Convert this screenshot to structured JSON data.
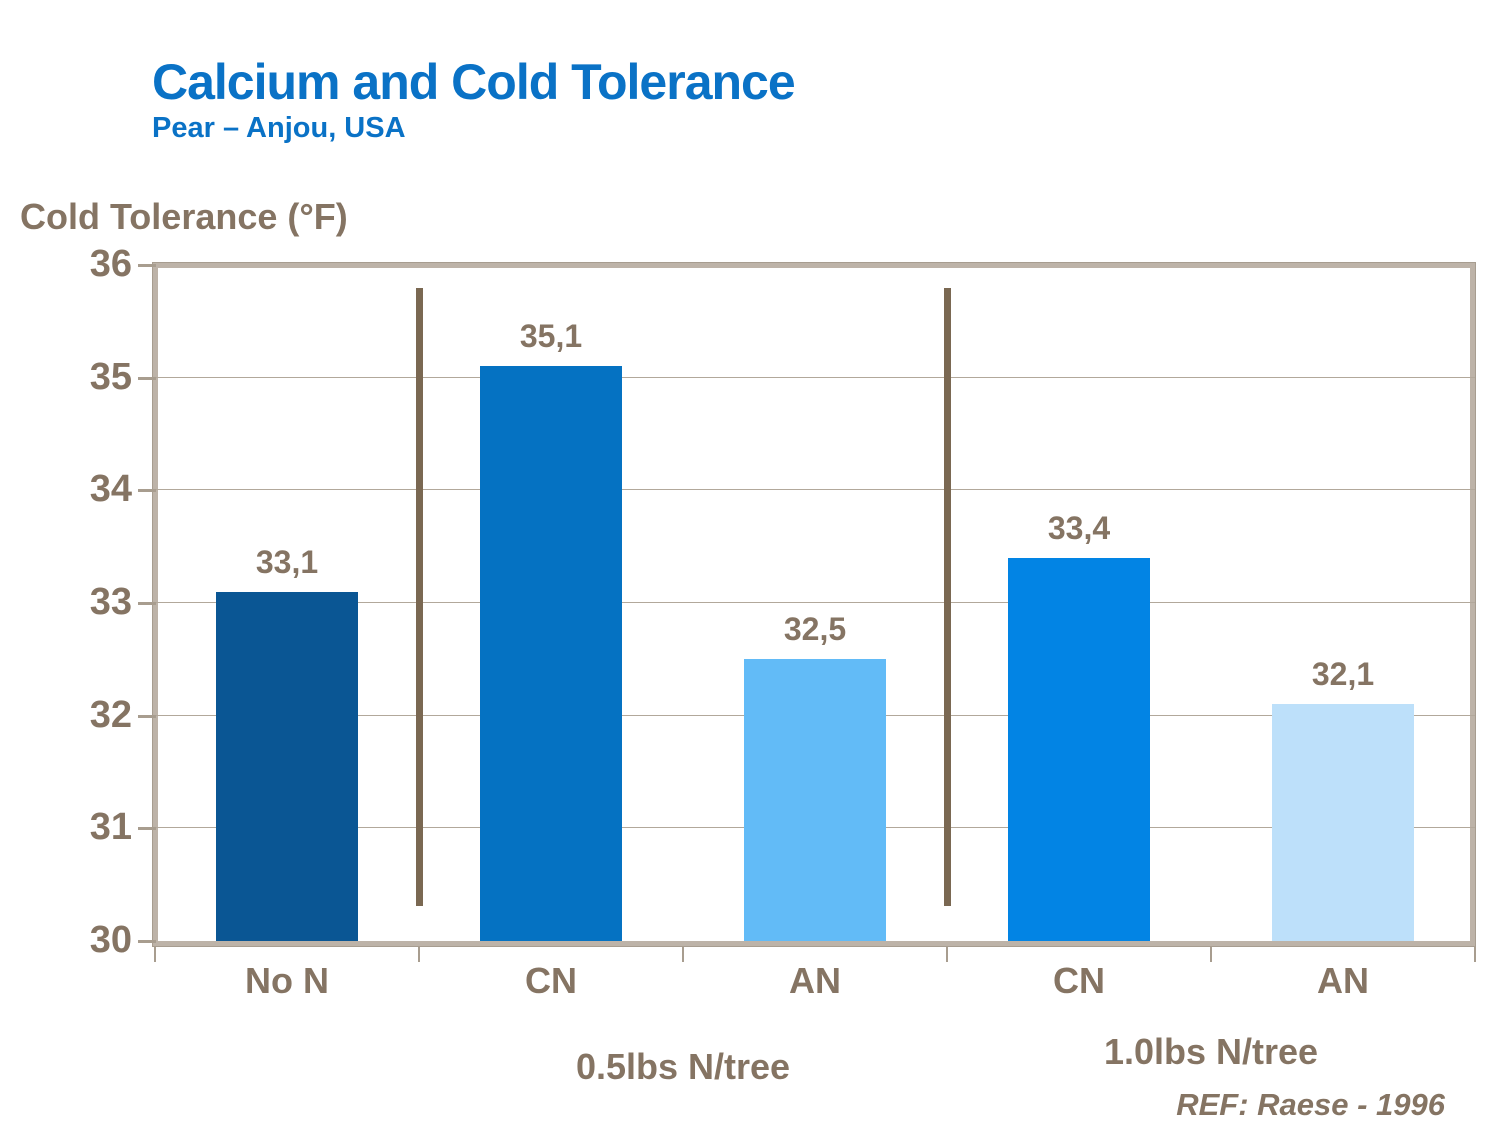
{
  "header": {
    "title": "Calcium and Cold Tolerance",
    "subtitle": "Pear – Anjou, USA"
  },
  "footer": {
    "reference": "REF: Raese - 1996"
  },
  "chart_data": {
    "type": "bar",
    "title": "Calcium and Cold Tolerance",
    "subtitle": "Pear – Anjou, USA",
    "xlabel": "",
    "ylabel": "Cold Tolerance (°F)",
    "ylim": [
      30,
      36
    ],
    "yticks": [
      30,
      31,
      32,
      33,
      34,
      35,
      36
    ],
    "grid": "horizontal",
    "legend": "none",
    "categories": [
      "No N",
      "CN",
      "AN",
      "CN",
      "AN"
    ],
    "values": [
      33.1,
      35.1,
      32.5,
      33.4,
      32.1
    ],
    "value_labels": [
      "33,1",
      "35,1",
      "32,5",
      "33,4",
      "32,1"
    ],
    "bar_colors": [
      "#0a5694",
      "#0572c2",
      "#62bbf7",
      "#0284e4",
      "#bde0fa"
    ],
    "groups": [
      {
        "label": "0.5lbs N/tree",
        "span": [
          1,
          2
        ]
      },
      {
        "label": "1.0lbs N/tree",
        "span": [
          3,
          4
        ]
      }
    ],
    "dividers_after_index": [
      0,
      2
    ],
    "colors": {
      "title_blue": "#0a72c6",
      "text_brown": "#857463",
      "divider_brown": "#7a6852",
      "axis_border_tan": "#bdb3a8",
      "gridline_tan": "#b2a89b",
      "tick_tan": "#a89d8f"
    }
  }
}
